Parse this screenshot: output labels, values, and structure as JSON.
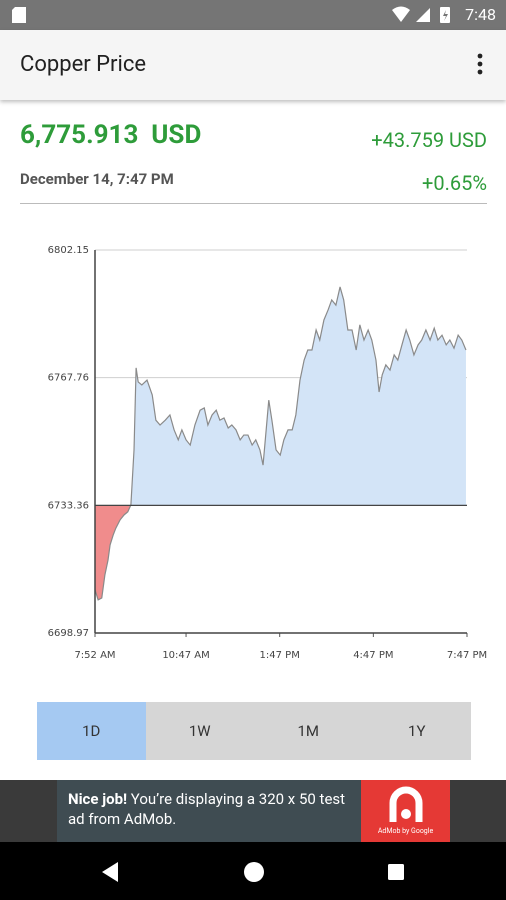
{
  "status_bar": {
    "time": "7:48"
  },
  "app_bar": {
    "title": "Copper Price"
  },
  "quote": {
    "price": "6,775.913",
    "currency": "USD",
    "change": "+43.759 USD",
    "date": "December 14, 7:47 PM",
    "change_percent": "+0.65%"
  },
  "chart_data": {
    "type": "line",
    "x": [
      472,
      478,
      485,
      491,
      497,
      501,
      507,
      512,
      520,
      528,
      535,
      541,
      547,
      551,
      555,
      562,
      572,
      582,
      589,
      597,
      607,
      616,
      624,
      632,
      639,
      647,
      655,
      664,
      674,
      682,
      689,
      697,
      705,
      712,
      720,
      728,
      735,
      743,
      751,
      758,
      766,
      774,
      781,
      789,
      795,
      801,
      806,
      812,
      820,
      828,
      835,
      843,
      851,
      858,
      866,
      874,
      881,
      889,
      897,
      904,
      912,
      920,
      927,
      935,
      943,
      950,
      958,
      966,
      974,
      981,
      989,
      997,
      1004,
      1012,
      1018,
      1024,
      1031,
      1039,
      1047,
      1054,
      1062,
      1070,
      1077,
      1085,
      1093,
      1100,
      1108,
      1116,
      1124,
      1131,
      1139,
      1147,
      1154,
      1162,
      1170,
      1177,
      1185
    ],
    "series": [
      {
        "color": "#8a8a8a",
        "values": [
          6710.6,
          6707.9,
          6708.4,
          6714.6,
          6718.6,
          6722.7,
          6725.4,
          6727.2,
          6729.4,
          6730.8,
          6731.6,
          6733.5,
          6748.3,
          6770.4,
          6766.6,
          6765.8,
          6767.1,
          6763.1,
          6756.3,
          6755.0,
          6756.3,
          6757.7,
          6753.7,
          6751.0,
          6753.7,
          6751.0,
          6749.6,
          6755.0,
          6759.0,
          6759.6,
          6755.0,
          6757.7,
          6759.0,
          6756.3,
          6756.9,
          6754.2,
          6755.0,
          6753.7,
          6751.0,
          6752.3,
          6752.3,
          6749.6,
          6751.0,
          6748.3,
          6744.2,
          6753.7,
          6761.7,
          6756.3,
          6748.3,
          6746.9,
          6751.0,
          6753.7,
          6753.7,
          6757.7,
          6767.1,
          6772.5,
          6775.2,
          6775.2,
          6780.6,
          6777.9,
          6783.3,
          6786.0,
          6788.7,
          6787.3,
          6792.2,
          6788.7,
          6780.6,
          6780.6,
          6775.2,
          6782.0,
          6777.9,
          6780.6,
          6777.9,
          6772.5,
          6763.9,
          6768.5,
          6771.2,
          6769.8,
          6773.9,
          6772.5,
          6776.6,
          6780.6,
          6777.9,
          6773.9,
          6776.6,
          6777.9,
          6780.6,
          6777.9,
          6781.1,
          6777.9,
          6779.2,
          6776.6,
          6777.9,
          6775.7,
          6779.2,
          6777.9,
          6775.2
        ]
      }
    ],
    "baseline": 6733.36,
    "fill_above": "#d3e4f7",
    "fill_below": "#f08c8c",
    "xlim": [
      472,
      1187
    ],
    "xticks": [
      {
        "value": 472,
        "label": "7:52 AM"
      },
      {
        "value": 647,
        "label": "10:47 AM"
      },
      {
        "value": 827,
        "label": "1:47 PM"
      },
      {
        "value": 1007,
        "label": "4:47 PM"
      },
      {
        "value": 1187,
        "label": "7:47 PM"
      }
    ],
    "ylim": [
      6698.97,
      6802.15
    ],
    "yticks": [
      6698.97,
      6733.36,
      6767.76,
      6802.15
    ],
    "grid": true
  },
  "tabs": [
    "1D",
    "1W",
    "1M",
    "1Y"
  ],
  "ad": {
    "bold": "Nice job!",
    "text": "You’re displaying a 320 x 50 test ad from AdMob.",
    "logo": "AdMob by Google"
  }
}
